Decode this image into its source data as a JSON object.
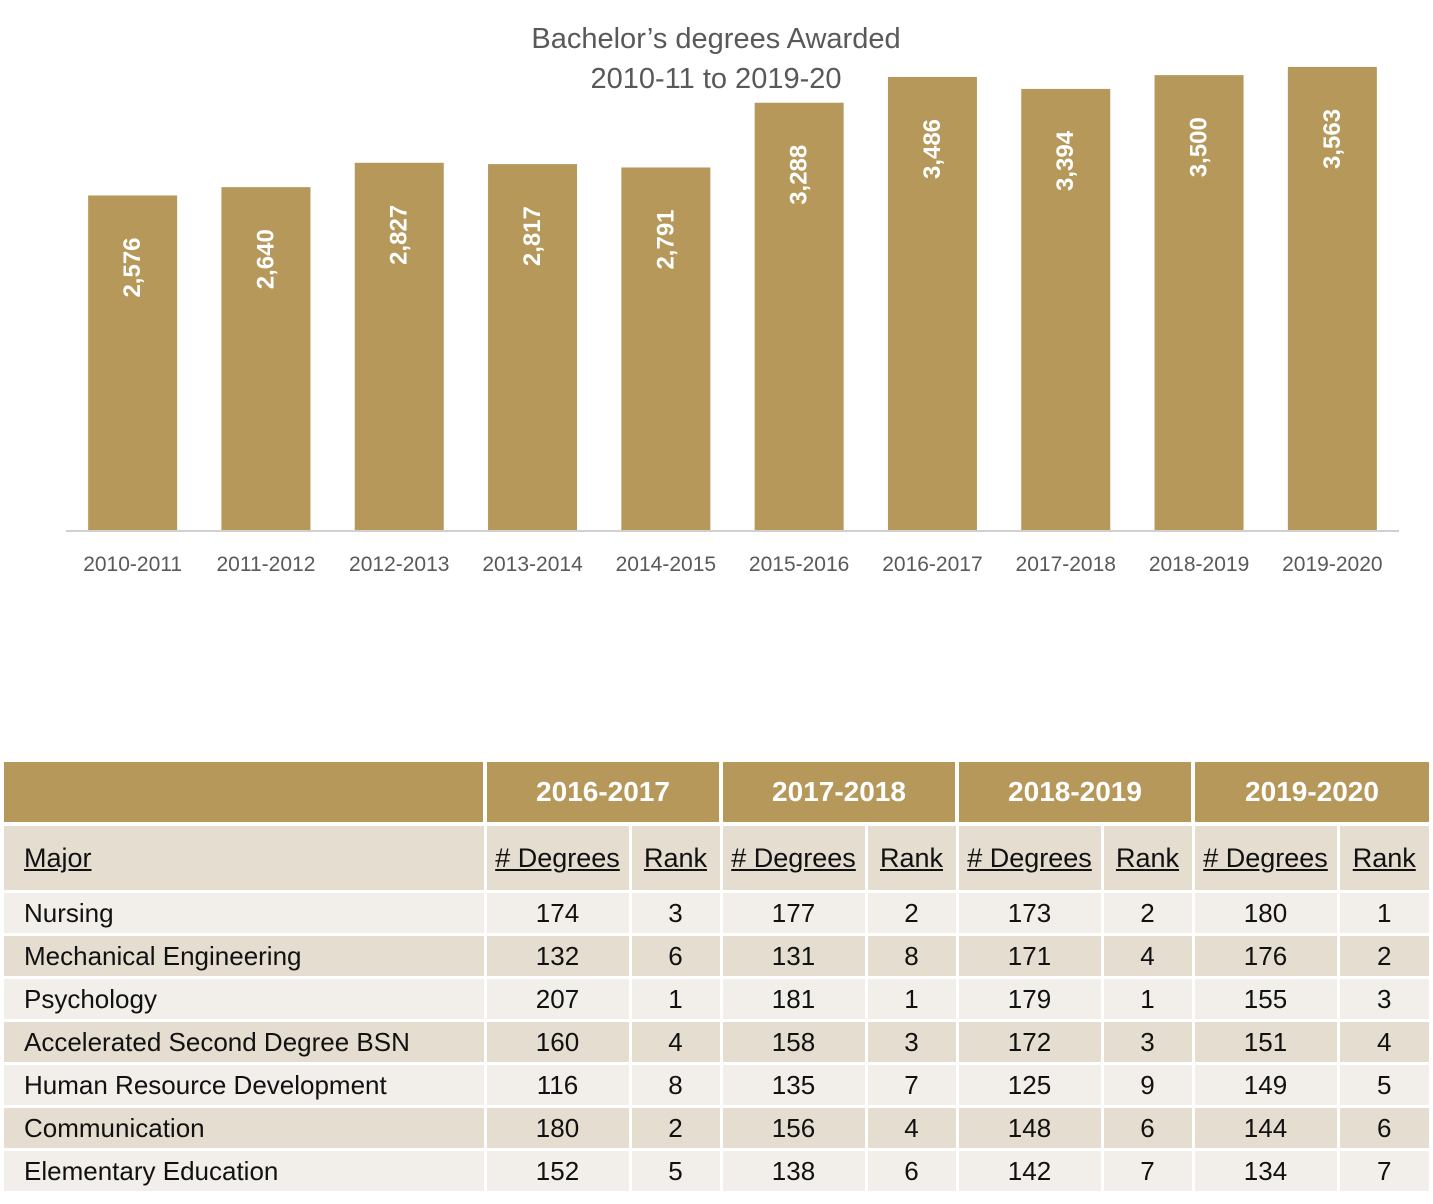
{
  "colors": {
    "bar": "#b5985a",
    "band": "#b5985a",
    "row_dark": "#e4ddd0",
    "row_light": "#f2efea"
  },
  "chart_data": {
    "type": "bar",
    "title": "Bachelor’s degrees Awarded",
    "subtitle": "2010-11 to 2019-20",
    "categories": [
      "2010-2011",
      "2011-2012",
      "2012-2013",
      "2013-2014",
      "2014-2015",
      "2015-2016",
      "2016-2017",
      "2017-2018",
      "2018-2019",
      "2019-2020"
    ],
    "values": [
      2576,
      2640,
      2827,
      2817,
      2791,
      3288,
      3486,
      3394,
      3500,
      3563
    ],
    "value_labels": [
      "2,576",
      "2,640",
      "2,827",
      "2,817",
      "2,791",
      "3,288",
      "3,486",
      "3,394",
      "3,500",
      "3,563"
    ],
    "xlabel": "",
    "ylabel": "",
    "ylim": [
      0,
      4000
    ],
    "grid": false,
    "legend": "none"
  },
  "table": {
    "year_headers": [
      "2016-2017",
      "2017-2018",
      "2018-2019",
      "2019-2020"
    ],
    "major_header": "Major",
    "degrees_header": "# Degrees",
    "rank_header": "Rank",
    "rows": [
      {
        "major": "Nursing",
        "cells": [
          "174",
          "3",
          "177",
          "2",
          "173",
          "2",
          "180",
          "1"
        ]
      },
      {
        "major": "Mechanical Engineering",
        "cells": [
          "132",
          "6",
          "131",
          "8",
          "171",
          "4",
          "176",
          "2"
        ]
      },
      {
        "major": "Psychology",
        "cells": [
          "207",
          "1",
          "181",
          "1",
          "179",
          "1",
          "155",
          "3"
        ]
      },
      {
        "major": "Accelerated Second Degree BSN",
        "cells": [
          "160",
          "4",
          "158",
          "3",
          "172",
          "3",
          "151",
          "4"
        ]
      },
      {
        "major": "Human Resource Development",
        "cells": [
          "116",
          "8",
          "135",
          "7",
          "125",
          "9",
          "149",
          "5"
        ]
      },
      {
        "major": "Communication",
        "cells": [
          "180",
          "2",
          "156",
          "4",
          "148",
          "6",
          "144",
          "6"
        ]
      },
      {
        "major": "Elementary Education",
        "cells": [
          "152",
          "5",
          "138",
          "6",
          "142",
          "7",
          "134",
          "7"
        ]
      }
    ]
  }
}
